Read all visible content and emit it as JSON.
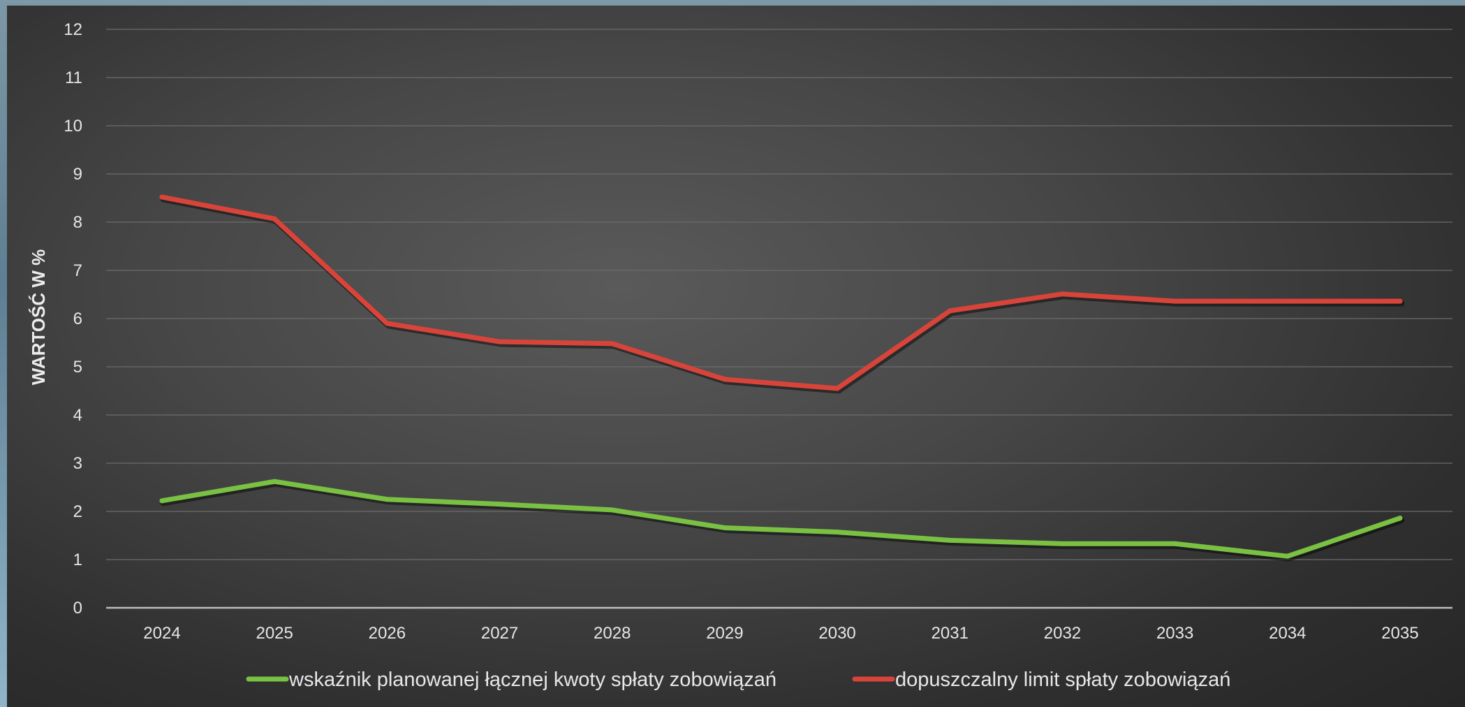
{
  "chart_data": {
    "type": "line",
    "title": "",
    "xlabel": "",
    "ylabel": "WARTOŚĆ W %",
    "ylim": [
      0,
      12
    ],
    "yticks": [
      0,
      1,
      2,
      3,
      4,
      5,
      6,
      7,
      8,
      9,
      10,
      11,
      12
    ],
    "categories": [
      "2024",
      "2025",
      "2026",
      "2027",
      "2028",
      "2029",
      "2030",
      "2031",
      "2032",
      "2033",
      "2034",
      "2035"
    ],
    "grid": true,
    "legend_position": "bottom",
    "series": [
      {
        "name": "wskaźnik planowanej łącznej kwoty spłaty zobowiązań",
        "color": "#7ac143",
        "values": [
          2.22,
          2.62,
          2.25,
          2.15,
          2.03,
          1.66,
          1.57,
          1.4,
          1.33,
          1.33,
          1.07,
          1.86
        ]
      },
      {
        "name": "dopuszczalny limit spłaty zobowiązań",
        "color": "#d9443a",
        "values": [
          8.52,
          8.07,
          5.9,
          5.52,
          5.48,
          4.74,
          4.55,
          6.16,
          6.51,
          6.36,
          6.36,
          6.36
        ]
      }
    ]
  }
}
